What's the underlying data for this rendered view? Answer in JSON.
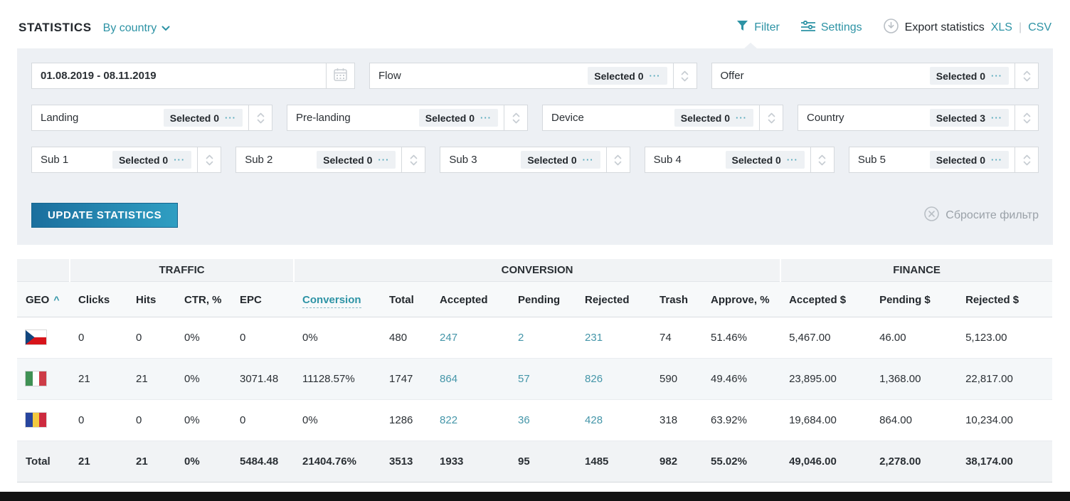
{
  "colors": {
    "accent": "#2d93a5",
    "link": "#4596a9",
    "dark": "#23282d",
    "panel_bg": "#edf0f4",
    "button_gradient_start": "#1b6f9e",
    "button_gradient_end": "#2f9ec2"
  },
  "header": {
    "title": "STATISTICS",
    "view_selector": "By country",
    "filter_label": "Filter",
    "settings_label": "Settings",
    "export_label": "Export statistics",
    "export_xls": "XLS",
    "export_csv": "CSV",
    "export_divider": "|"
  },
  "filters": {
    "date_value": "01.08.2019 - 08.11.2019",
    "dots": "···",
    "row1": [
      {
        "label": "Flow",
        "selected": "Selected 0"
      },
      {
        "label": "Offer",
        "selected": "Selected 0"
      }
    ],
    "row2": [
      {
        "label": "Landing",
        "selected": "Selected 0"
      },
      {
        "label": "Pre-landing",
        "selected": "Selected 0"
      },
      {
        "label": "Device",
        "selected": "Selected 0"
      },
      {
        "label": "Country",
        "selected": "Selected 3"
      }
    ],
    "row3": [
      {
        "label": "Sub 1",
        "selected": "Selected 0"
      },
      {
        "label": "Sub 2",
        "selected": "Selected 0"
      },
      {
        "label": "Sub 3",
        "selected": "Selected 0"
      },
      {
        "label": "Sub 4",
        "selected": "Selected 0"
      },
      {
        "label": "Sub 5",
        "selected": "Selected 0"
      }
    ],
    "update_button": "UPDATE STATISTICS",
    "reset_label": "Сбросите фильтр"
  },
  "table": {
    "sort_caret": "^",
    "groups": [
      {
        "label": "TRAFFIC",
        "span": 4
      },
      {
        "label": "CONVERSION",
        "span": 7
      },
      {
        "label": "FINANCE",
        "span": 3
      }
    ],
    "columns": [
      "GEO",
      "Clicks",
      "Hits",
      "CTR, %",
      "EPC",
      "Conversion",
      "Total",
      "Accepted",
      "Pending",
      "Rejected",
      "Trash",
      "Approve, %",
      "Accepted $",
      "Pending $",
      "Rejected $"
    ],
    "link_value_indices": [
      6,
      7,
      8
    ],
    "rows": [
      {
        "geo": "czech-republic",
        "flag": "cz",
        "values": [
          "0",
          "0",
          "0%",
          "0",
          "0%",
          "480",
          "247",
          "2",
          "231",
          "74",
          "51.46%",
          "5,467.00",
          "46.00",
          "5,123.00"
        ]
      },
      {
        "geo": "italy",
        "flag": "it",
        "values": [
          "21",
          "21",
          "0%",
          "3071.48",
          "11128.57%",
          "1747",
          "864",
          "57",
          "826",
          "590",
          "49.46%",
          "23,895.00",
          "1,368.00",
          "22,817.00"
        ]
      },
      {
        "geo": "romania",
        "flag": "ro",
        "values": [
          "0",
          "0",
          "0%",
          "0",
          "0%",
          "1286",
          "822",
          "36",
          "428",
          "318",
          "63.92%",
          "19,684.00",
          "864.00",
          "10,234.00"
        ]
      }
    ],
    "total": {
      "label": "Total",
      "values": [
        "21",
        "21",
        "0%",
        "5484.48",
        "21404.76%",
        "3513",
        "1933",
        "95",
        "1485",
        "982",
        "55.02%",
        "49,046.00",
        "2,278.00",
        "38,174.00"
      ]
    }
  }
}
